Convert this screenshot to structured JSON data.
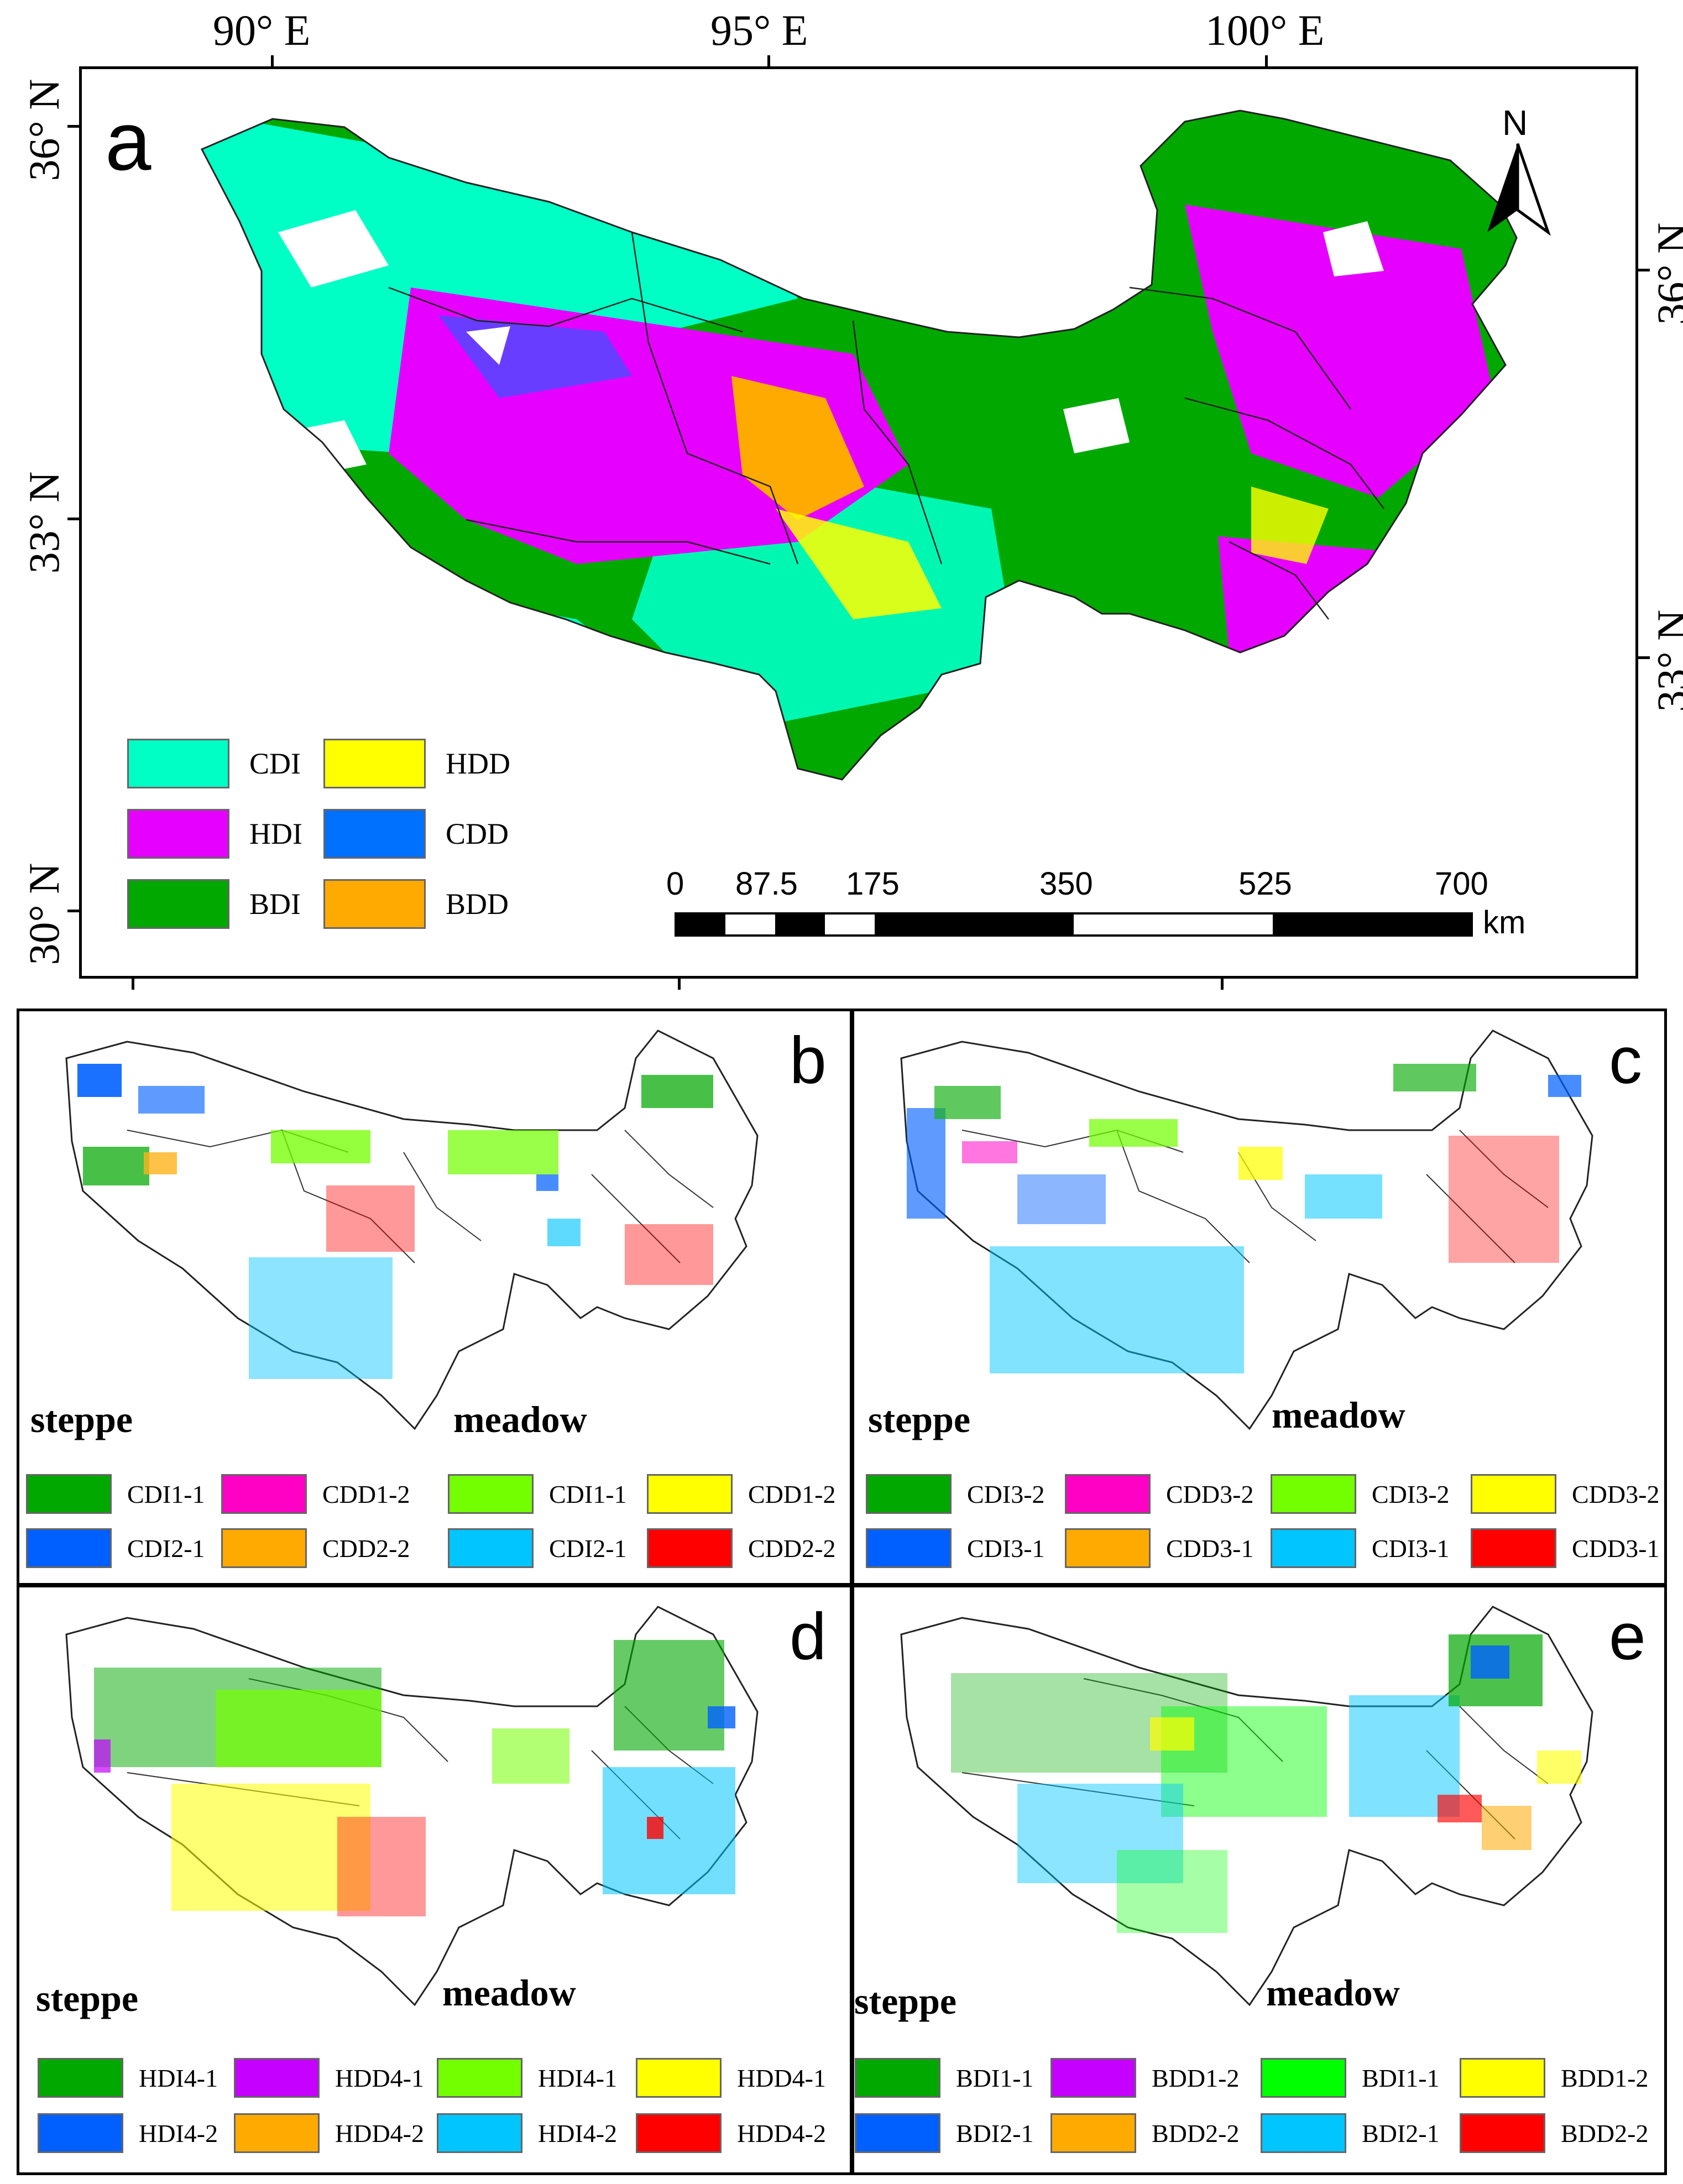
{
  "panel_a": {
    "letter": "a",
    "top_axis_labels": [
      "90° E",
      "95° E",
      "100° E"
    ],
    "left_axis_labels": [
      "36° N",
      "33° N",
      "30° N"
    ],
    "right_axis_labels": [
      "36° N",
      "33° N"
    ],
    "north_arrow_label": "N",
    "legend": [
      {
        "label": "CDI",
        "color": "#00ffc5"
      },
      {
        "label": "HDD",
        "color": "#ffff00"
      },
      {
        "label": "HDI",
        "color": "#e600ff"
      },
      {
        "label": "CDD",
        "color": "#0070ff"
      },
      {
        "label": "BDI",
        "color": "#00a800"
      },
      {
        "label": "BDD",
        "color": "#ffaa00"
      }
    ],
    "scale_bar": {
      "ticks": [
        "0",
        "87.5",
        "175",
        "350",
        "525",
        "700"
      ],
      "unit": "km"
    }
  },
  "panel_b": {
    "letter": "b",
    "steppe_label": "steppe",
    "meadow_label": "meadow",
    "legend": [
      {
        "label": "CDI1-1",
        "color": "#00a800"
      },
      {
        "label": "CDD1-2",
        "color": "#ff00c5"
      },
      {
        "label": "CDI1-1",
        "color": "#73ff00"
      },
      {
        "label": "CDD1-2",
        "color": "#ffff00"
      },
      {
        "label": "CDI2-1",
        "color": "#0060ff"
      },
      {
        "label": "CDD2-2",
        "color": "#ffaa00"
      },
      {
        "label": "CDI2-1",
        "color": "#00c5ff"
      },
      {
        "label": "CDD2-2",
        "color": "#ff0000"
      }
    ]
  },
  "panel_c": {
    "letter": "c",
    "steppe_label": "steppe",
    "meadow_label": "meadow",
    "legend": [
      {
        "label": "CDI3-2",
        "color": "#00a800"
      },
      {
        "label": "CDD3-2",
        "color": "#ff00c5"
      },
      {
        "label": "CDI3-2",
        "color": "#73ff00"
      },
      {
        "label": "CDD3-2",
        "color": "#ffff00"
      },
      {
        "label": "CDI3-1",
        "color": "#0060ff"
      },
      {
        "label": "CDD3-1",
        "color": "#ffaa00"
      },
      {
        "label": "CDI3-1",
        "color": "#00c5ff"
      },
      {
        "label": "CDD3-1",
        "color": "#ff0000"
      }
    ]
  },
  "panel_d": {
    "letter": "d",
    "steppe_label": "steppe",
    "meadow_label": "meadow",
    "legend": [
      {
        "label": "HDI4-1",
        "color": "#00a800"
      },
      {
        "label": "HDD4-1",
        "color": "#c500ff"
      },
      {
        "label": "HDI4-1",
        "color": "#73ff00"
      },
      {
        "label": "HDD4-1",
        "color": "#ffff00"
      },
      {
        "label": "HDI4-2",
        "color": "#0060ff"
      },
      {
        "label": "HDD4-2",
        "color": "#ffaa00"
      },
      {
        "label": "HDI4-2",
        "color": "#00c5ff"
      },
      {
        "label": "HDD4-2",
        "color": "#ff0000"
      }
    ]
  },
  "panel_e": {
    "letter": "e",
    "steppe_label": "steppe",
    "meadow_label": "meadow",
    "legend": [
      {
        "label": "BDI1-1",
        "color": "#00a800"
      },
      {
        "label": "BDD1-2",
        "color": "#c500ff"
      },
      {
        "label": "BDI1-1",
        "color": "#00ff00"
      },
      {
        "label": "BDD1-2",
        "color": "#ffff00"
      },
      {
        "label": "BDI2-1",
        "color": "#0060ff"
      },
      {
        "label": "BDD2-2",
        "color": "#ffaa00"
      },
      {
        "label": "BDI2-1",
        "color": "#00c5ff"
      },
      {
        "label": "BDD2-2",
        "color": "#ff0000"
      }
    ]
  }
}
